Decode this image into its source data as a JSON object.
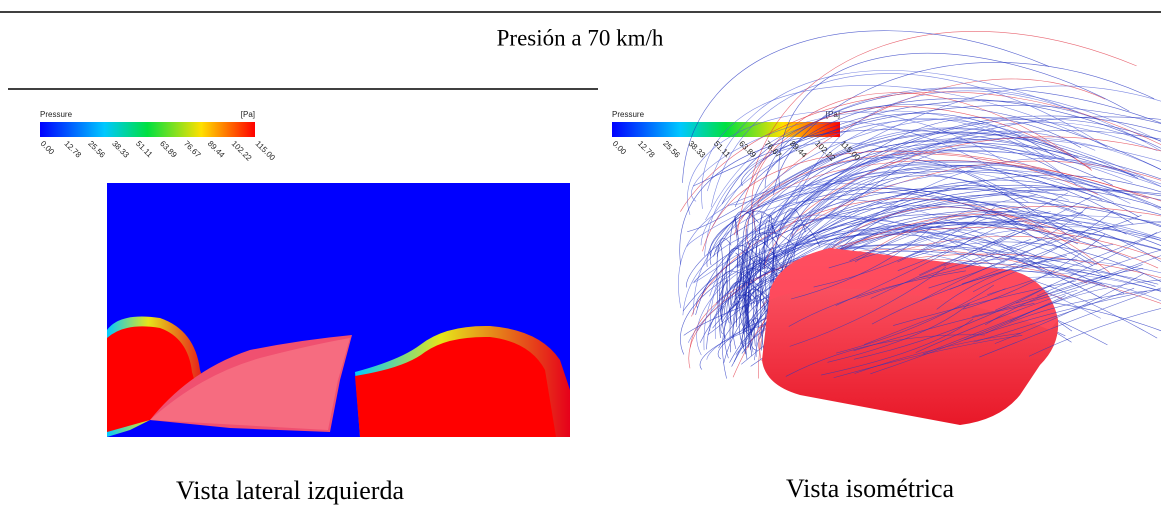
{
  "title": "Presión a 70 km/h",
  "panels": [
    {
      "legend": {
        "label": "Pressure",
        "unit": "[Pa]",
        "ticks": [
          "0.00",
          "12.78",
          "25.56",
          "38.33",
          "51.11",
          "63.89",
          "76.67",
          "89.44",
          "102.22",
          "115.00"
        ]
      },
      "caption": "Vista lateral izquierda"
    },
    {
      "legend": {
        "label": "Pressure",
        "unit": "[Pa]",
        "ticks": [
          "0.00",
          "12.78",
          "25.56",
          "38.33",
          "51.11",
          "63.89",
          "76.67",
          "89.44",
          "102.22",
          "115.00"
        ]
      },
      "caption": "Vista isométrica"
    }
  ]
}
